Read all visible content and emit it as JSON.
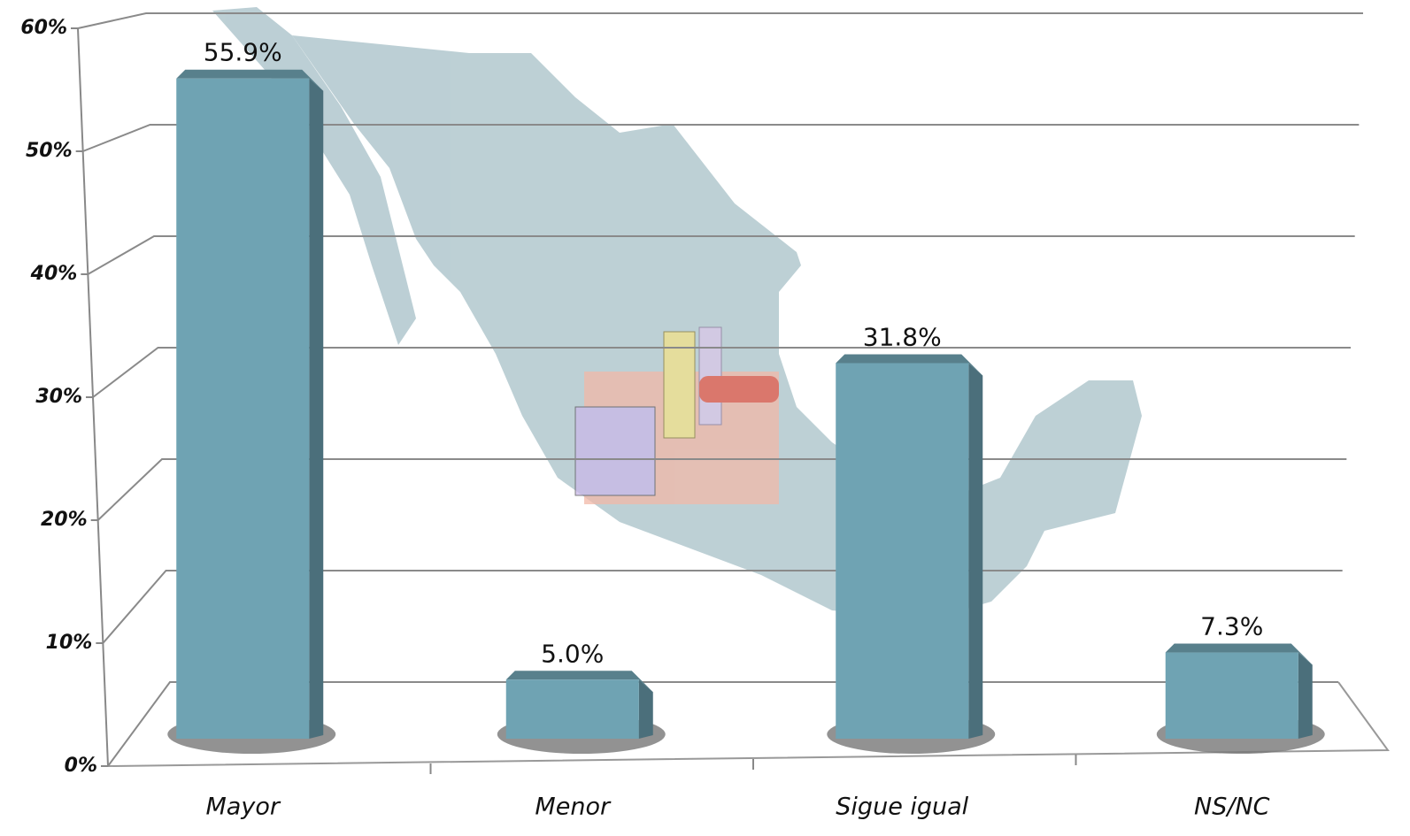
{
  "chart_data": {
    "type": "bar3d",
    "categories": [
      "Mayor",
      "Menor",
      "Sigue igual",
      "NS/NC"
    ],
    "values": [
      55.9,
      5.0,
      31.8,
      7.3
    ],
    "value_labels": [
      "55.9%",
      "5.0%",
      "31.8%",
      "7.3%"
    ],
    "color": "#6fa3b3",
    "ylim": [
      0,
      60
    ],
    "yticks": [
      {
        "value": 0,
        "label": "0%"
      },
      {
        "value": 10,
        "label": "10%"
      },
      {
        "value": 20,
        "label": "20%"
      },
      {
        "value": 30,
        "label": "30%"
      },
      {
        "value": 40,
        "label": "40%"
      },
      {
        "value": 50,
        "label": "50%"
      },
      {
        "value": 60,
        "label": "60%"
      }
    ],
    "grid": true
  }
}
